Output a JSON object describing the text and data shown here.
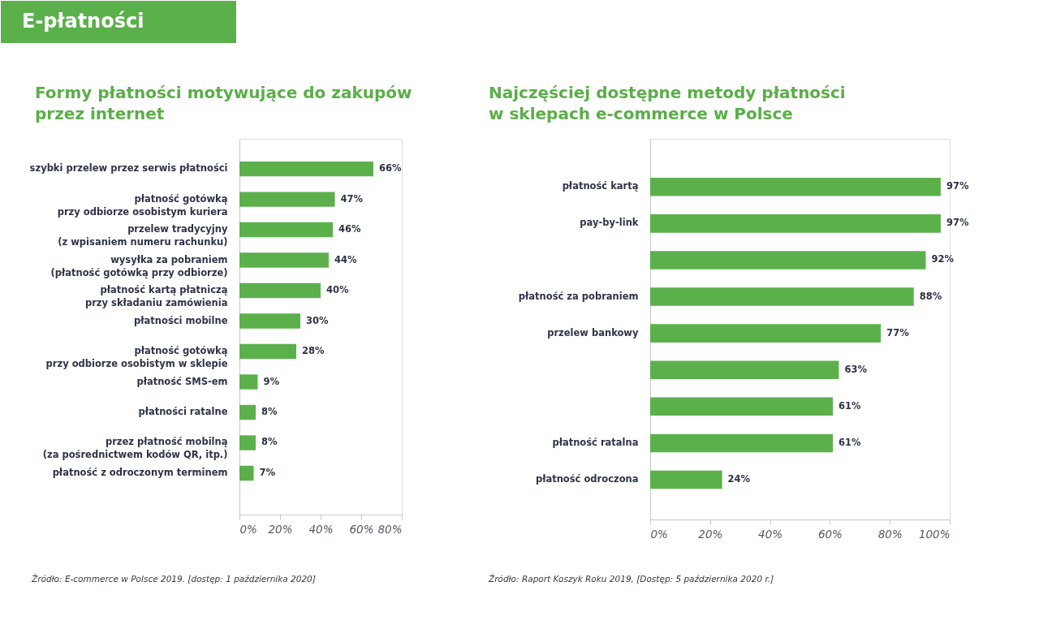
{
  "chart_data": [
    {
      "type": "other",
      "title": "E-płatności"
    },
    {
      "type": "bar",
      "orientation": "horizontal",
      "title": "Formy płatności motywujące do zakupów\nprzez internet",
      "categories": [
        "szybki przelew przez serwis płatności",
        "płatność gotówką\nprzy odbiorze osobistym kuriera",
        "przelew tradycyjny\n(z wpisaniem numeru rachunku)",
        "wysyłka za pobraniem\n(płatność gotówką przy odbiorze)",
        "płatność kartą płatniczą\nprzy składaniu zamówienia",
        "płatności mobilne",
        "płatność gotówką\nprzy odbiorze osobistym w sklepie",
        "płatność SMS-em",
        "płatności ratalne",
        "przez płatność mobilną\n(za pośrednictwem kodów QR, itp.)",
        "płatność z odroczonym terminem"
      ],
      "values": [
        66,
        47,
        46,
        44,
        40,
        30,
        28,
        9,
        8,
        8,
        7
      ],
      "value_labels": [
        "66%",
        "47%",
        "46%",
        "44%",
        "40%",
        "30%",
        "28%",
        "9%",
        "8%",
        "8%",
        "7%"
      ],
      "color": "#5cb04c",
      "xlim": [
        0,
        80
      ],
      "xticks": [
        {
          "value": 0,
          "label": "0%"
        },
        {
          "value": 20,
          "label": "20%"
        },
        {
          "value": 40,
          "label": "40%"
        },
        {
          "value": 60,
          "label": "60%"
        },
        {
          "value": 80,
          "label": "80%"
        }
      ],
      "annotations": [
        "Źródło: E-commerce w Polsce 2019. [dostęp: 1 października 2020]"
      ]
    },
    {
      "type": "bar",
      "orientation": "horizontal",
      "title": "Najczęściej dostępne metody płatności\nw sklepach e-commerce w Polsce",
      "categories": [
        "płatność kartą",
        "pay-by-link",
        null,
        "płatność za pobraniem",
        "przelew bankowy",
        null,
        null,
        "płatność ratalna",
        "płatność odroczona"
      ],
      "values": [
        97,
        97,
        92,
        88,
        77,
        63,
        61,
        61,
        24
      ],
      "value_labels": [
        "97%",
        "97%",
        "92%",
        "88%",
        "77%",
        "63%",
        "61%",
        "61%",
        "24%"
      ],
      "color": "#5cb04c",
      "xlim": [
        0,
        100
      ],
      "xticks": [
        {
          "value": 0,
          "label": "0%"
        },
        {
          "value": 20,
          "label": "20%"
        },
        {
          "value": 40,
          "label": "40%"
        },
        {
          "value": 60,
          "label": "60%"
        },
        {
          "value": 80,
          "label": "80%"
        },
        {
          "value": 100,
          "label": "100%"
        }
      ],
      "annotations": [
        "Źródło: Raport Koszyk Roku 2019, [Dostęp: 5 października 2020 r.]"
      ]
    }
  ]
}
